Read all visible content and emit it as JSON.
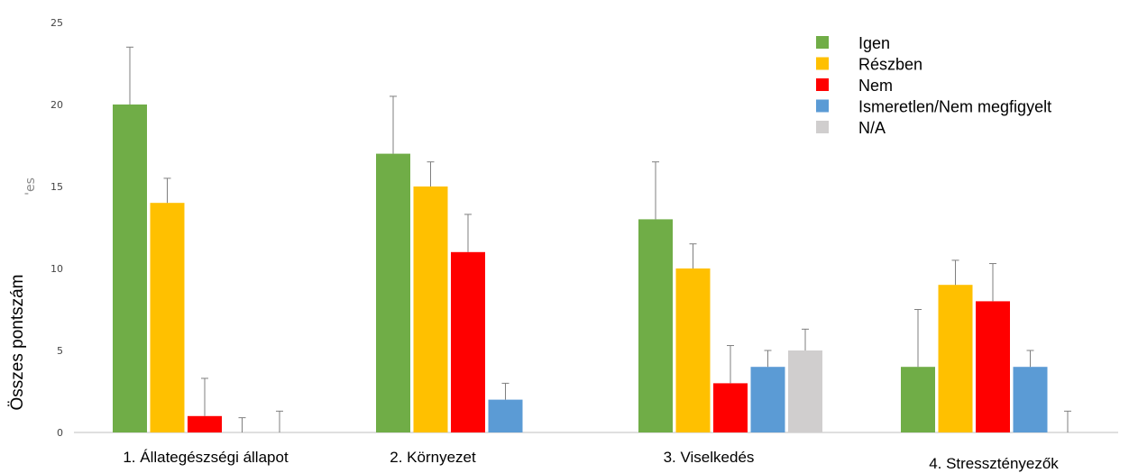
{
  "chart_data": {
    "type": "bar",
    "ylabel": "Összes pontszám",
    "ylabel_ghost": "'es",
    "ylim": [
      0,
      25
    ],
    "yticks": [
      0,
      5,
      10,
      15,
      20,
      25
    ],
    "grid": false,
    "legend_position": "top-right",
    "categories": [
      "1. Állategészségi állapot",
      "2. Környezet",
      "3. Viselkedés",
      "4. Stressztényezők"
    ],
    "series": [
      {
        "name": "Igen",
        "color": "#70ad47",
        "values": [
          20,
          17,
          13,
          4
        ],
        "errors": [
          3.5,
          3.5,
          3.5,
          3.5
        ]
      },
      {
        "name": "Részben",
        "color": "#ffc000",
        "values": [
          14,
          15,
          10,
          9
        ],
        "errors": [
          1.5,
          1.5,
          1.5,
          1.5
        ]
      },
      {
        "name": "Nem",
        "color": "#ff0000",
        "values": [
          1,
          11,
          3,
          8
        ],
        "errors": [
          2.3,
          2.3,
          2.3,
          2.3
        ]
      },
      {
        "name": "Ismeretlen/Nem megfigyelt",
        "color": "#5b9bd5",
        "values": [
          0,
          2,
          4,
          4
        ],
        "errors": [
          0.9,
          1,
          1,
          1
        ]
      },
      {
        "name": "N/A",
        "color": "#d0cece",
        "values": [
          0,
          null,
          5,
          0
        ],
        "errors": [
          1.3,
          1.3,
          1.3,
          1.3
        ]
      }
    ]
  }
}
